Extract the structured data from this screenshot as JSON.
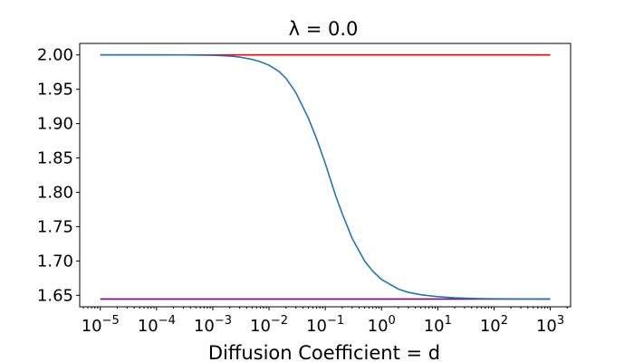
{
  "chart_data": {
    "type": "line",
    "title": "λ =  0.0",
    "xlabel": "Diffusion Coefficient = d",
    "ylabel": "",
    "xscale": "log",
    "xlim": [
      4.3e-06,
      2300
    ],
    "ylim": [
      1.6333,
      2.0167
    ],
    "grid": false,
    "legend": "none",
    "x_ticks": [
      {
        "value": 1e-05,
        "base": "10",
        "exp": "−5"
      },
      {
        "value": 0.0001,
        "base": "10",
        "exp": "−4"
      },
      {
        "value": 0.001,
        "base": "10",
        "exp": "−3"
      },
      {
        "value": 0.01,
        "base": "10",
        "exp": "−2"
      },
      {
        "value": 0.1,
        "base": "10",
        "exp": "−1"
      },
      {
        "value": 1,
        "base": "10",
        "exp": "0"
      },
      {
        "value": 10,
        "base": "10",
        "exp": "1"
      },
      {
        "value": 100,
        "base": "10",
        "exp": "2"
      },
      {
        "value": 1000,
        "base": "10",
        "exp": "3"
      }
    ],
    "y_ticks": [
      {
        "value": 1.65,
        "label": "1.65"
      },
      {
        "value": 1.7,
        "label": "1.70"
      },
      {
        "value": 1.75,
        "label": "1.75"
      },
      {
        "value": 1.8,
        "label": "1.80"
      },
      {
        "value": 1.85,
        "label": "1.85"
      },
      {
        "value": 1.9,
        "label": "1.90"
      },
      {
        "value": 1.95,
        "label": "1.95"
      },
      {
        "value": 2.0,
        "label": "2.00"
      }
    ],
    "series": [
      {
        "color": "#ff0000",
        "x": [
          1e-05,
          1000
        ],
        "y": [
          2.0,
          2.0
        ]
      },
      {
        "color": "#800080",
        "x": [
          1e-05,
          1000
        ],
        "y": [
          1.6446,
          1.6446
        ]
      },
      {
        "color": "#1f77b4",
        "x": [
          1e-05,
          0.0001,
          0.0003,
          0.001,
          0.002,
          0.003,
          0.005,
          0.007,
          0.01,
          0.015,
          0.02,
          0.03,
          0.05,
          0.07,
          0.1,
          0.15,
          0.2,
          0.3,
          0.5,
          0.7,
          1,
          2,
          3,
          5,
          10,
          20,
          50,
          100,
          1000
        ],
        "y": [
          2.0,
          2.0,
          1.9999,
          1.9994,
          1.9983,
          1.9968,
          1.9935,
          1.99,
          1.985,
          1.976,
          1.966,
          1.945,
          1.908,
          1.878,
          1.842,
          1.797,
          1.769,
          1.733,
          1.7,
          1.685,
          1.673,
          1.659,
          1.6543,
          1.6508,
          1.648,
          1.6464,
          1.6453,
          1.645,
          1.6446
        ]
      }
    ]
  }
}
